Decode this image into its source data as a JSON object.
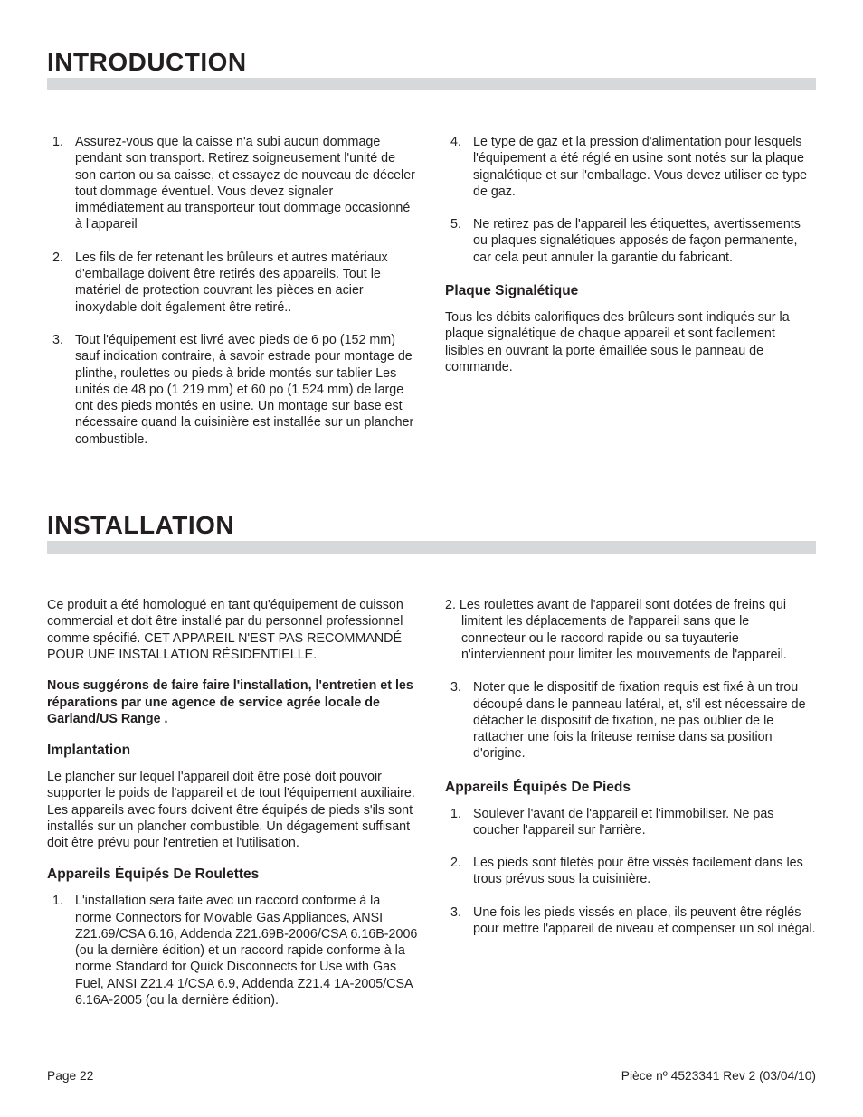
{
  "intro": {
    "heading": "INTRODUCTION",
    "left_items": [
      "Assurez-vous que la caisse n'a subi aucun dommage pendant son transport. Retirez soigneusement l'unité de son carton ou sa caisse, et essayez de nouveau de déceler tout dommage éventuel. Vous devez signaler immédiatement au transporteur tout dommage occasionné à l'appareil",
      "Les fils de fer retenant les brûleurs et autres matériaux d'emballage doivent être retirés des appareils. Tout le matériel de protection couvrant les pièces en acier inoxydable doit également être retiré..",
      "Tout l'équipement est livré avec pieds de 6 po (152 mm) sauf indication contraire, à savoir estrade pour montage de plinthe, roulettes ou pieds à bride montés sur tablier Les unités de 48 po (1 219 mm) et 60 po (1 524 mm) de large ont des pieds montés en usine. Un montage sur base est nécessaire quand la cuisinière est installée sur un plancher combustible."
    ],
    "right_items": [
      "Le type de gaz et la pression d'alimentation pour lesquels l'équipement a été réglé en usine sont notés sur la plaque signalétique et sur l'emballage. Vous devez utiliser ce type de gaz.",
      "Ne retirez pas de l'appareil les étiquettes, avertissements ou plaques signalétiques apposés de façon permanente, car cela peut annuler la garantie du fabricant."
    ],
    "plaque_h": "Plaque Signalétique",
    "plaque_p": "Tous les débits calorifiques des brûleurs sont indiqués sur la plaque signalétique de chaque appareil et sont facilement lisibles en ouvrant la porte émaillée sous le panneau de commande."
  },
  "install": {
    "heading": "INSTALLATION",
    "left": {
      "p1": "Ce produit a été homologué en tant qu'équipement de cuisson commercial et doit être installé par du personnel professionnel comme spécifié. CET APPAREIL N'EST PAS RECOMMANDÉ POUR UNE INSTALLATION RÉSIDENTIELLE.",
      "p2_bold": "Nous suggérons de faire faire l'installation, l'entretien et les réparations par une agence de service agrée locale de Garland/US Range .",
      "implant_h": "Implantation",
      "implant_p": "Le plancher sur lequel l'appareil doit être posé doit pouvoir supporter le poids de l'appareil et de tout l'équipement auxiliaire. Les appareils avec fours doivent être équipés de pieds s'ils sont installés sur un plancher combustible. Un dégagement suffisant doit être prévu pour l'entretien et l'utilisation.",
      "roulettes_h": "Appareils Équipés De Roulettes",
      "roulettes_item1": "L'installation sera faite avec un raccord conforme à la norme Connectors for Movable Gas Appliances, ANSI Z21.69/CSA 6.16, Addenda Z21.69B-2006/CSA 6.16B-2006 (ou la dernière édition) et un raccord rapide conforme à la norme Standard for Quick Disconnects for Use with Gas Fuel, ANSI Z21.4 1/CSA 6.9, Addenda Z21.4 1A-2005/CSA 6.16A-2005 (ou la dernière édition)."
    },
    "right": {
      "item2_hang": "2. Les roulettes avant de l'appareil sont dotées de freins qui limitent les déplacements de l'appareil sans que le connecteur ou le raccord rapide ou sa tuyauterie n'interviennent pour limiter les mouvements de l'appareil.",
      "item3": "Noter que le dispositif de fixation requis est fixé à un trou découpé dans le panneau latéral, et, s'il est nécessaire de détacher le dispositif de fixation, ne pas oublier de le rattacher une fois la friteuse remise dans sa position d'origine.",
      "pieds_h": "Appareils Équipés De Pieds",
      "pieds_items": [
        "Soulever l'avant de l'appareil et l'immobiliser. Ne pas coucher l'appareil sur l'arrière.",
        "Les pieds sont filetés pour être vissés facilement dans les trous prévus sous la cuisinière.",
        "Une fois les pieds vissés en place, ils peuvent être réglés pour mettre l'appareil de niveau et compenser un sol inégal."
      ]
    }
  },
  "footer": {
    "left": "Page 22",
    "right": "Pièce nº 4523341 Rev 2 (03/04/10)"
  }
}
